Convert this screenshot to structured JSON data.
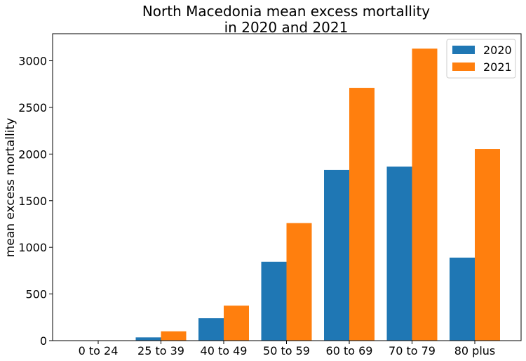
{
  "chart_data": {
    "type": "bar",
    "title_line1": "North Macedonia mean excess mortallity",
    "title_line2": "in 2020 and 2021",
    "xlabel": "",
    "ylabel": "mean excess mortallity",
    "categories": [
      "0 to 24",
      "25 to 39",
      "40 to 49",
      "50 to 59",
      "60 to 69",
      "70 to 79",
      "80 plus"
    ],
    "series": [
      {
        "name": "2020",
        "color": "#1f77b4",
        "values": [
          0,
          35,
          240,
          845,
          1830,
          1865,
          890
        ]
      },
      {
        "name": "2021",
        "color": "#ff7f0e",
        "values": [
          0,
          100,
          375,
          1260,
          2710,
          3130,
          2055
        ]
      }
    ],
    "yticks": [
      0,
      500,
      1000,
      1500,
      2000,
      2500,
      3000
    ],
    "ylim": [
      0,
      3290
    ],
    "grid": false,
    "legend_position": "top-right"
  }
}
